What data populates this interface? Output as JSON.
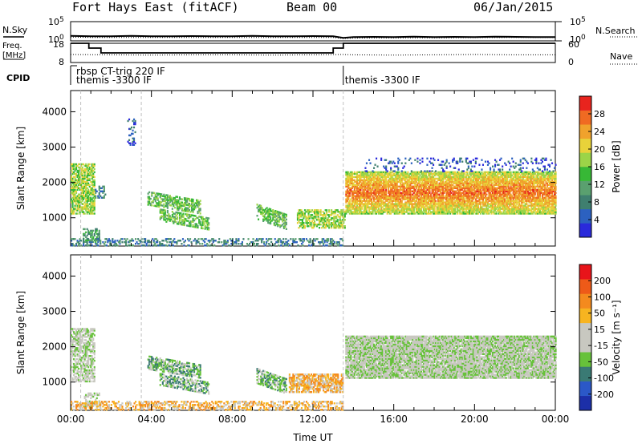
{
  "header": {
    "station": "Fort Hays East (fitACF)",
    "beam": "Beam 00",
    "date": "06/Jan/2015"
  },
  "side_labels": {
    "nsky": "N.Sky",
    "freq_line1": "Freq.",
    "freq_line2": "[MHz]",
    "cpid": "CPID",
    "nsearch": "N.Search",
    "nave": "Nave"
  },
  "colors": {
    "axis": "#000000",
    "dash": "#c0c0c0"
  },
  "chart_data": [
    {
      "type": "line",
      "panel": "noise",
      "series": [
        {
          "name": "N.Sky",
          "style": "solid"
        },
        {
          "name": "N.Search",
          "style": "dotted"
        }
      ],
      "yticks_left": [
        "10^5",
        "10^0"
      ],
      "yticks_right": [
        "10^5",
        "10^0"
      ],
      "ylim_log10": [
        0,
        5
      ],
      "x_hours": [
        0,
        1,
        2,
        3,
        4,
        5,
        6,
        7,
        8,
        9,
        10,
        11,
        12,
        13,
        13.5,
        14,
        15,
        16,
        17,
        18,
        19,
        20,
        21,
        22,
        23,
        24
      ],
      "nsky_log10": [
        1.3,
        1.2,
        1.2,
        1.3,
        1.2,
        1.2,
        1.25,
        1.2,
        1.2,
        1.3,
        1.2,
        1.2,
        1.25,
        1.2,
        0.8,
        1.0,
        1.05,
        1.0,
        1.1,
        1.0,
        1.05,
        1.0,
        1.1,
        1.05,
        1.0,
        1.0
      ],
      "nsearch_log10": [
        1.0,
        0.9,
        0.9,
        0.9,
        0.9,
        0.9,
        0.9,
        0.9,
        0.9,
        0.9,
        0.9,
        0.9,
        0.9,
        0.9,
        0.6,
        0.7,
        0.75,
        0.75,
        0.8,
        0.8,
        0.8,
        0.85,
        0.85,
        0.9,
        0.9,
        0.9
      ]
    },
    {
      "type": "line",
      "panel": "frequency",
      "series": [
        {
          "name": "Freq.",
          "style": "solid"
        },
        {
          "name": "Nave",
          "style": "dotted"
        }
      ],
      "yticks_left": [
        "18",
        "8"
      ],
      "yticks_right": [
        "60",
        "0"
      ],
      "freq_ylim": [
        8,
        18
      ],
      "nave_ylim": [
        0,
        60
      ],
      "freq_steps": [
        {
          "x": 0,
          "y": 18
        },
        {
          "x": 0.9,
          "y": 18
        },
        {
          "x": 0.9,
          "y": 15.5
        },
        {
          "x": 1.5,
          "y": 15.5
        },
        {
          "x": 1.5,
          "y": 13
        },
        {
          "x": 13.0,
          "y": 13
        },
        {
          "x": 13.0,
          "y": 15.5
        },
        {
          "x": 13.5,
          "y": 15.5
        },
        {
          "x": 13.5,
          "y": 18
        },
        {
          "x": 24,
          "y": 18
        }
      ],
      "nave_x": [
        0,
        2,
        4,
        6,
        8,
        10,
        12,
        13.5,
        14,
        16,
        18,
        20,
        22,
        24
      ],
      "nave_y": [
        25,
        24,
        23,
        24,
        24,
        23,
        24,
        25,
        24,
        23,
        24,
        25,
        24,
        24
      ]
    },
    {
      "type": "table",
      "panel": "cpid",
      "segments": [
        {
          "start": 0.2,
          "text": "rbsp CT-trig 220 IF",
          "row": 1
        },
        {
          "start": 0.2,
          "text": "themis -3300 IF",
          "row": 2
        },
        {
          "start": 13.5,
          "text": "themis -3300 IF",
          "row": 2
        }
      ]
    },
    {
      "type": "heatmap",
      "panel": "power",
      "ylabel": "Slant Range [km]",
      "ylim": [
        200,
        4600
      ],
      "yticks": [
        1000,
        2000,
        3000,
        4000
      ],
      "xlim": [
        0,
        24
      ],
      "colorbar": {
        "label": "Power [dB]",
        "ticks": [
          "28",
          "24",
          "20",
          "16",
          "12",
          "8",
          "4"
        ],
        "colors": [
          "#2a2adb",
          "#2c61c0",
          "#3f7f6f",
          "#5aa06f",
          "#37b836",
          "#9bd448",
          "#e8d23a",
          "#f0a22c",
          "#f06a22",
          "#e8241e"
        ]
      },
      "bands": [
        {
          "x0": 0,
          "x1": 1.2,
          "r0": 1100,
          "r1": 2500,
          "level": 5,
          "density": 0.7
        },
        {
          "x0": 0.6,
          "x1": 1.4,
          "r0": 300,
          "r1": 700,
          "level": 3,
          "density": 0.5
        },
        {
          "x0": 1.2,
          "x1": 1.7,
          "r0": 1550,
          "r1": 1900,
          "level": 2,
          "density": 0.4
        },
        {
          "x0": 2.8,
          "x1": 3.2,
          "r0": 3000,
          "r1": 3800,
          "level": 1,
          "density": 0.3
        },
        {
          "x0": 3.8,
          "x1": 6.4,
          "r0": 1350,
          "r1": 1750,
          "level": 4,
          "density": 0.6,
          "slope": -250
        },
        {
          "x0": 4.4,
          "x1": 6.8,
          "r0": 900,
          "r1": 1250,
          "level": 4,
          "density": 0.6,
          "slope": -250
        },
        {
          "x0": 9.2,
          "x1": 10.7,
          "r0": 950,
          "r1": 1400,
          "level": 4,
          "density": 0.6,
          "slope": -300
        },
        {
          "x0": 11.2,
          "x1": 13.6,
          "r0": 700,
          "r1": 1200,
          "level": 5,
          "density": 0.6
        },
        {
          "x0": 0,
          "x1": 13.5,
          "r0": 200,
          "r1": 420,
          "level": 2,
          "density": 0.35
        },
        {
          "x0": 13.6,
          "x1": 24,
          "r0": 1100,
          "r1": 2300,
          "level": 6,
          "density": 0.85
        },
        {
          "x0": 14.5,
          "x1": 24,
          "r0": 2300,
          "r1": 2700,
          "level": 1,
          "density": 0.15
        }
      ],
      "dashed_x_hours": [
        0.5,
        3.5,
        13.5
      ]
    },
    {
      "type": "heatmap",
      "panel": "velocity",
      "ylabel": "Slant Range [km]",
      "xlabel": "Time UT",
      "ylim": [
        200,
        4600
      ],
      "yticks": [
        1000,
        2000,
        3000,
        4000
      ],
      "xlim": [
        0,
        24
      ],
      "xticks": [
        "00:00",
        "04:00",
        "08:00",
        "12:00",
        "16:00",
        "20:00",
        "00:00"
      ],
      "colorbar": {
        "label": "Velocity [m s⁻¹]",
        "ticks": [
          "200",
          "100",
          "50",
          "15",
          "-15",
          "-50",
          "-100",
          "-200"
        ],
        "colors": [
          "#1c2fa8",
          "#2b58c8",
          "#3a7a74",
          "#67c23a",
          "#c8c8c0",
          "#c8c8c0",
          "#f7b420",
          "#f48a1e",
          "#ee5a18",
          "#e8141a"
        ]
      },
      "bands": [
        {
          "x0": 0,
          "x1": 1.2,
          "r0": 1000,
          "r1": 2500,
          "level": 4,
          "density": 0.6
        },
        {
          "x0": 0.6,
          "x1": 1.4,
          "r0": 300,
          "r1": 700,
          "level": 4,
          "density": 0.4
        },
        {
          "x0": 3.8,
          "x1": 6.4,
          "r0": 1350,
          "r1": 1750,
          "level": 3,
          "density": 0.6,
          "slope": -250
        },
        {
          "x0": 4.4,
          "x1": 6.8,
          "r0": 900,
          "r1": 1250,
          "level": 3,
          "density": 0.6,
          "slope": -250
        },
        {
          "x0": 9.2,
          "x1": 10.7,
          "r0": 950,
          "r1": 1400,
          "level": 3,
          "density": 0.6,
          "slope": -300
        },
        {
          "x0": 10.8,
          "x1": 13.5,
          "r0": 700,
          "r1": 1200,
          "level": 6,
          "density": 0.7
        },
        {
          "x0": 0,
          "x1": 13.5,
          "r0": 200,
          "r1": 450,
          "level": 6,
          "density": 0.45
        },
        {
          "x0": 13.6,
          "x1": 24,
          "r0": 1100,
          "r1": 2300,
          "level": 4,
          "density": 0.9
        }
      ],
      "dashed_x_hours": [
        0.5,
        3.5,
        13.5
      ]
    }
  ]
}
